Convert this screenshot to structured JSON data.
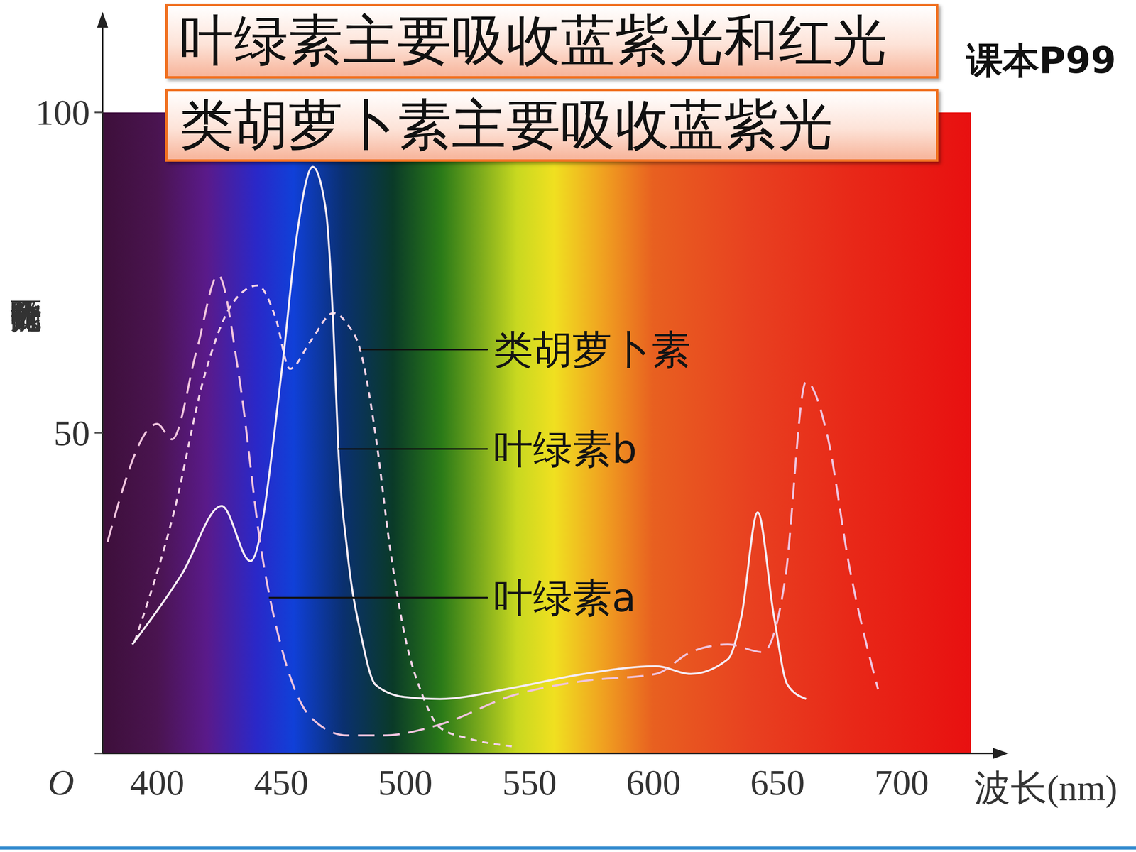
{
  "chart_data": {
    "type": "line",
    "title": "叶绿素主要吸收蓝紫光和红光",
    "subtitle": "类胡萝卜素主要吸收蓝紫光",
    "annotations": [
      "课本P99"
    ],
    "x_label": "波长(nm)",
    "y_label": "吸收光能的百分比",
    "xlim": [
      378,
      728
    ],
    "xticks": [
      400,
      450,
      500,
      550,
      600,
      650,
      700
    ],
    "ylim": [
      0,
      100
    ],
    "yticks": [
      {
        "value": 0,
        "label": "O"
      },
      50,
      100
    ],
    "grid": false,
    "series": [
      {
        "name": "类胡萝卜素",
        "color": "#f2d2e6",
        "line_style": "dotted",
        "x": [
          391,
          407,
          419,
          430,
          440.5,
          447.7,
          453.5,
          462,
          471,
          476.6,
          482,
          488,
          494,
          500,
          507,
          514,
          525.7,
          543
        ],
        "values": [
          17.5,
          38,
          58.8,
          70,
          73,
          68,
          60,
          64.4,
          68.7,
          67,
          62.7,
          49.7,
          31.6,
          18,
          9,
          4,
          2.3,
          1.1
        ]
      },
      {
        "name": "叶绿素b",
        "color": "#f5ecf4",
        "line_style": "solid",
        "x": [
          390,
          410,
          426,
          437.6,
          450.6,
          456,
          462.7,
          468,
          471,
          473,
          476.6,
          482.4,
          488,
          499.7,
          514,
          543,
          572,
          601,
          615,
          630,
          635.5,
          642,
          648.5,
          654,
          661.5
        ],
        "values": [
          17,
          28,
          38.6,
          30,
          61,
          80,
          91.5,
          84.7,
          66.7,
          47.5,
          31.6,
          18,
          10.7,
          8.8,
          8.5,
          10.2,
          12.4,
          13.6,
          12.4,
          14.7,
          21.5,
          37.6,
          21.5,
          10.7,
          8.5
        ]
      },
      {
        "name": "叶绿素a",
        "color": "#f0c4de",
        "line_style": "dashed",
        "x": [
          380,
          400,
          406,
          416,
          424.6,
          433,
          442,
          450.6,
          462,
          476.6,
          491,
          514,
          543,
          572,
          601,
          615,
          630,
          644,
          653,
          661.5,
          670,
          679,
          690.5
        ],
        "values": [
          33,
          51.4,
          49,
          63,
          74.6,
          58.8,
          31.6,
          15.8,
          5.6,
          2.8,
          2.8,
          4.5,
          9,
          11.3,
          12.4,
          15.8,
          17,
          15.8,
          27,
          58,
          49.7,
          29,
          10
        ]
      }
    ]
  }
}
